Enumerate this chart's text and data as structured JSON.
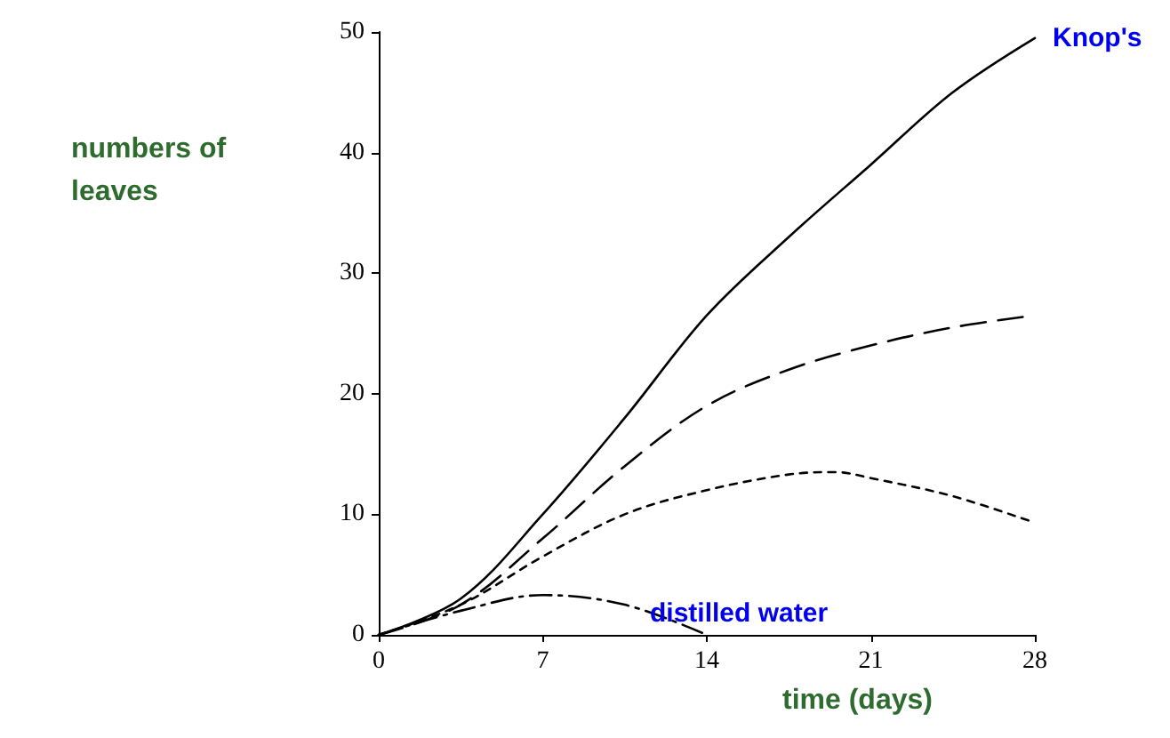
{
  "chart_data": {
    "type": "line",
    "xlabel": "time (days)",
    "ylabel": "numbers of leaves",
    "xlim": [
      0,
      28
    ],
    "xticks": [
      0,
      7,
      14,
      21,
      28
    ],
    "ylim": [
      0,
      50
    ],
    "yticks": [
      0,
      10,
      20,
      30,
      40,
      50
    ],
    "grid": false,
    "legend": false,
    "marker": "none",
    "series": [
      {
        "name": "Knop's",
        "color": "#000000",
        "line_style": "solid",
        "x": [
          0,
          3.5,
          7,
          10.5,
          14,
          17.5,
          21,
          24.5,
          28
        ],
        "values": [
          0,
          3,
          10,
          18,
          26.5,
          33,
          39,
          45,
          49.5
        ]
      },
      {
        "color": "#000000",
        "line_style": "dashed",
        "x": [
          0,
          3.5,
          7,
          10.5,
          14,
          17.5,
          21,
          24.5,
          28
        ],
        "values": [
          0,
          2.5,
          8,
          14,
          19,
          22,
          24,
          25.5,
          26.5
        ]
      },
      {
        "color": "#000000",
        "line_style": "dotted",
        "x": [
          0,
          3.5,
          7,
          10.5,
          14,
          17.5,
          19.5,
          21,
          24.5,
          28
        ],
        "values": [
          0,
          2.5,
          6.5,
          10,
          12,
          13.3,
          13.5,
          13,
          11.5,
          9.3
        ]
      },
      {
        "name": "distilled water",
        "color": "#000000",
        "line_style": "dashdot",
        "x": [
          0,
          3.5,
          7,
          10.5,
          14
        ],
        "values": [
          0,
          2,
          3.3,
          2.5,
          0
        ]
      }
    ]
  }
}
